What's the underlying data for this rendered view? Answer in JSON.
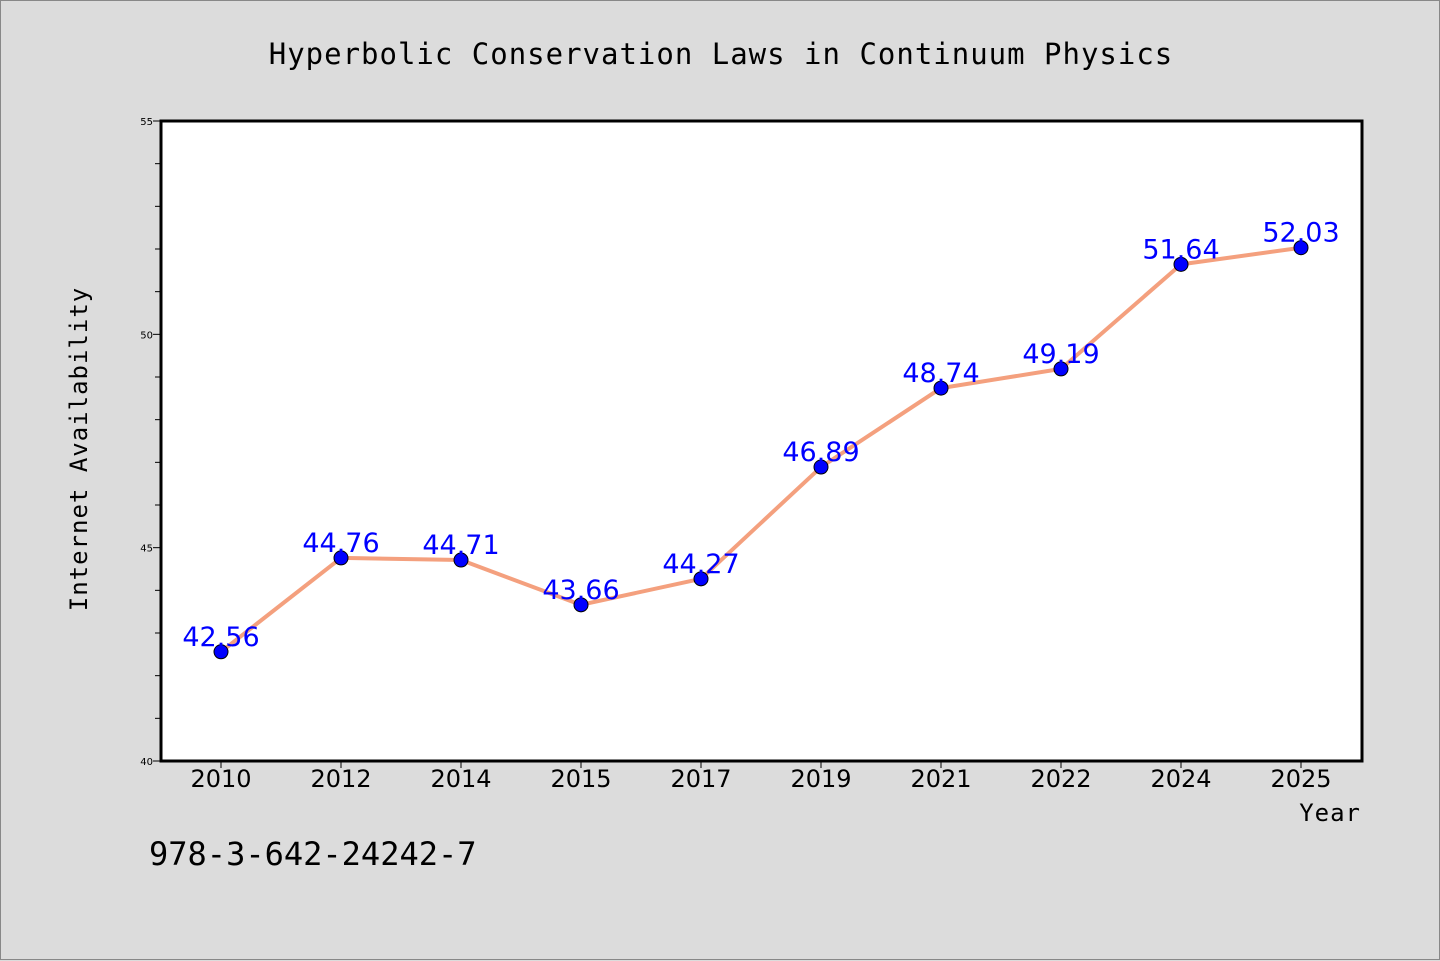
{
  "colors": {
    "background": "#dcdcdc",
    "plot_background": "#ffffff",
    "line": "#f4a07e",
    "marker": "#0000ff",
    "data_label": "#0000ff",
    "axis": "#000000"
  },
  "footer": {
    "isbn": "978-3-642-24242-7"
  },
  "chart_data": {
    "type": "line",
    "title": "Hyperbolic Conservation Laws in Continuum Physics",
    "xlabel": "Year",
    "ylabel": "Internet Availability",
    "categories": [
      "2010",
      "2012",
      "2014",
      "2015",
      "2017",
      "2019",
      "2021",
      "2022",
      "2024",
      "2025"
    ],
    "series": [
      {
        "values": [
          42.56,
          44.76,
          44.71,
          43.66,
          44.27,
          46.89,
          48.74,
          49.19,
          51.64,
          52.03
        ],
        "labels": [
          "42.56",
          "44.76",
          "44.71",
          "43.66",
          "44.27",
          "46.89",
          "48.74",
          "49.19",
          "51.64",
          "52.03"
        ]
      }
    ],
    "ylim": [
      40,
      55
    ],
    "yticks_major": [
      40,
      45,
      50,
      55
    ],
    "ytick_labels": [
      "40",
      "45",
      "50",
      "55"
    ],
    "yticks_minor_step": 1,
    "grid": false,
    "legend": "none",
    "markers": "circle"
  }
}
